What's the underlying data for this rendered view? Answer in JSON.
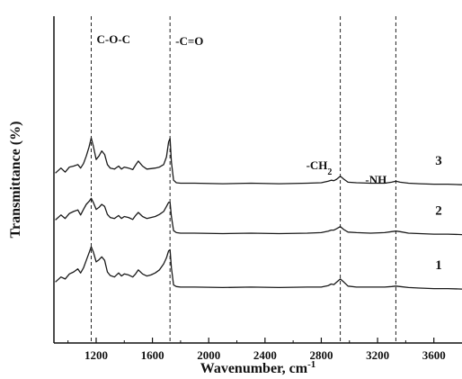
{
  "chart_data": {
    "type": "line",
    "title": "",
    "xlabel": "Wavenumber, cm",
    "xlabel_superscript": "-1",
    "ylabel": "Transmittance (%)",
    "xlim": [
      900,
      3800
    ],
    "x_ticks": [
      1200,
      1600,
      2000,
      2400,
      2800,
      3200,
      3600
    ],
    "x_tick_labels": [
      "1200",
      "1600",
      "2000",
      "2400",
      "2800",
      "3200",
      "3600"
    ],
    "y_ticks_shown": false,
    "grid": false,
    "legend": "none",
    "line_color": "#1a1a1a",
    "reference_lines": [
      {
        "x": 1165,
        "label": "C-O-C"
      },
      {
        "x": 1725,
        "label": "-C=O"
      },
      {
        "x": 2935,
        "label": "-CH",
        "subscript": "2"
      },
      {
        "x": 3330,
        "label": "-NH"
      }
    ],
    "series": [
      {
        "name": "3",
        "x": [
          910,
          950,
          980,
          1010,
          1040,
          1070,
          1090,
          1110,
          1130,
          1150,
          1165,
          1180,
          1200,
          1220,
          1240,
          1260,
          1280,
          1300,
          1330,
          1360,
          1380,
          1400,
          1430,
          1460,
          1480,
          1500,
          1530,
          1560,
          1590,
          1620,
          1650,
          1680,
          1700,
          1715,
          1725,
          1735,
          1750,
          1770,
          1800,
          1900,
          2100,
          2300,
          2500,
          2700,
          2800,
          2850,
          2870,
          2890,
          2910,
          2935,
          2960,
          2990,
          3050,
          3150,
          3250,
          3300,
          3330,
          3360,
          3420,
          3500,
          3600,
          3700,
          3800
        ],
        "y": [
          0.28,
          0.38,
          0.3,
          0.4,
          0.42,
          0.45,
          0.38,
          0.47,
          0.62,
          0.8,
          0.98,
          0.82,
          0.55,
          0.62,
          0.72,
          0.65,
          0.45,
          0.38,
          0.36,
          0.42,
          0.36,
          0.4,
          0.38,
          0.35,
          0.44,
          0.52,
          0.42,
          0.36,
          0.37,
          0.38,
          0.4,
          0.45,
          0.6,
          0.9,
          0.97,
          0.5,
          0.14,
          0.09,
          0.08,
          0.08,
          0.07,
          0.08,
          0.07,
          0.08,
          0.09,
          0.12,
          0.14,
          0.13,
          0.16,
          0.22,
          0.16,
          0.1,
          0.09,
          0.08,
          0.08,
          0.1,
          0.12,
          0.1,
          0.08,
          0.07,
          0.06,
          0.06,
          0.05
        ],
        "offset": 2.0
      },
      {
        "name": "2",
        "x": [
          910,
          950,
          980,
          1010,
          1040,
          1070,
          1090,
          1110,
          1130,
          1150,
          1165,
          1180,
          1200,
          1220,
          1240,
          1260,
          1280,
          1300,
          1330,
          1360,
          1380,
          1400,
          1430,
          1460,
          1480,
          1500,
          1530,
          1560,
          1590,
          1620,
          1650,
          1680,
          1700,
          1715,
          1725,
          1735,
          1750,
          1770,
          1800,
          1900,
          2100,
          2300,
          2500,
          2700,
          2800,
          2850,
          2870,
          2890,
          2910,
          2935,
          2960,
          2990,
          3050,
          3150,
          3250,
          3300,
          3330,
          3360,
          3420,
          3500,
          3600,
          3700,
          3800
        ],
        "y": [
          0.35,
          0.45,
          0.38,
          0.48,
          0.52,
          0.55,
          0.45,
          0.56,
          0.66,
          0.72,
          0.78,
          0.7,
          0.56,
          0.6,
          0.66,
          0.62,
          0.46,
          0.4,
          0.38,
          0.44,
          0.38,
          0.42,
          0.4,
          0.36,
          0.44,
          0.5,
          0.42,
          0.38,
          0.4,
          0.42,
          0.46,
          0.52,
          0.62,
          0.7,
          0.7,
          0.42,
          0.14,
          0.1,
          0.09,
          0.09,
          0.08,
          0.09,
          0.08,
          0.09,
          0.1,
          0.13,
          0.15,
          0.15,
          0.18,
          0.22,
          0.16,
          0.11,
          0.1,
          0.09,
          0.1,
          0.12,
          0.13,
          0.12,
          0.09,
          0.08,
          0.07,
          0.07,
          0.06
        ],
        "offset": 1.0
      },
      {
        "name": "1",
        "x": [
          910,
          950,
          980,
          1010,
          1040,
          1070,
          1090,
          1110,
          1130,
          1150,
          1165,
          1180,
          1200,
          1220,
          1240,
          1260,
          1280,
          1300,
          1330,
          1360,
          1380,
          1400,
          1430,
          1460,
          1480,
          1500,
          1530,
          1560,
          1590,
          1620,
          1650,
          1680,
          1700,
          1715,
          1725,
          1735,
          1750,
          1770,
          1800,
          1900,
          2100,
          2300,
          2500,
          2700,
          2800,
          2850,
          2870,
          2890,
          2910,
          2935,
          2960,
          2990,
          3050,
          3150,
          3250,
          3300,
          3330,
          3360,
          3420,
          3500,
          3600,
          3700,
          3800
        ],
        "y": [
          0.12,
          0.22,
          0.18,
          0.28,
          0.32,
          0.38,
          0.3,
          0.4,
          0.55,
          0.7,
          0.82,
          0.72,
          0.52,
          0.56,
          0.62,
          0.55,
          0.32,
          0.25,
          0.22,
          0.3,
          0.24,
          0.28,
          0.26,
          0.22,
          0.28,
          0.36,
          0.28,
          0.24,
          0.26,
          0.3,
          0.36,
          0.48,
          0.6,
          0.74,
          0.76,
          0.4,
          0.06,
          0.03,
          0.02,
          0.02,
          0.01,
          0.02,
          0.01,
          0.02,
          0.02,
          0.05,
          0.08,
          0.07,
          0.12,
          0.18,
          0.12,
          0.04,
          0.02,
          0.02,
          0.02,
          0.03,
          0.04,
          0.03,
          0.01,
          0.0,
          -0.01,
          -0.01,
          -0.02
        ],
        "offset": 0.0
      }
    ]
  }
}
